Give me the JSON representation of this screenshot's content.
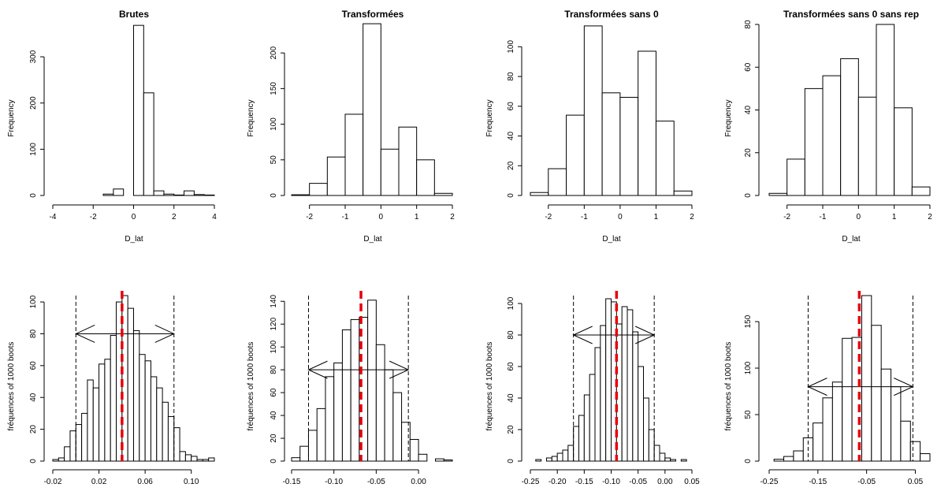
{
  "chart_data": [
    {
      "type": "bar",
      "title": "Brutes",
      "xlabel": "D_lat",
      "ylabel": "Frequency",
      "xlim": [
        -4,
        4
      ],
      "ylim": [
        0,
        370
      ],
      "xticks": [
        -4,
        -2,
        0,
        2,
        4
      ],
      "xtick_labels": [
        "-4",
        "-2",
        "0",
        "2",
        "4"
      ],
      "yticks": [
        0,
        100,
        200,
        300
      ],
      "ytick_labels": [
        "0",
        "100",
        "200",
        "300"
      ],
      "bin_edges": [
        -4,
        -3.5,
        -3,
        -2.5,
        -2,
        -1.5,
        -1,
        -0.5,
        0,
        0.5,
        1,
        1.5,
        2,
        2.5,
        3,
        3.5
      ],
      "values": [
        0,
        0,
        0,
        0,
        0,
        3,
        14,
        0,
        368,
        222,
        10,
        3,
        1,
        10,
        2,
        1
      ]
    },
    {
      "type": "bar",
      "title": "Transformées",
      "xlabel": "D_lat",
      "ylabel": "Frequency",
      "xlim": [
        -2.5,
        2
      ],
      "ylim": [
        0,
        240
      ],
      "xticks": [
        -2,
        -1,
        0,
        1,
        2
      ],
      "xtick_labels": [
        "-2",
        "-1",
        "0",
        "1",
        "2"
      ],
      "yticks": [
        0,
        50,
        100,
        150,
        200
      ],
      "ytick_labels": [
        "0",
        "50",
        "100",
        "150",
        "200"
      ],
      "bin_edges": [
        -2.5,
        -2,
        -1.5,
        -1,
        -0.5,
        0,
        0.5,
        1,
        1.5
      ],
      "values": [
        1,
        17,
        54,
        114,
        241,
        65,
        96,
        50,
        3
      ]
    },
    {
      "type": "bar",
      "title": "Transformées sans 0",
      "xlabel": "D_lat",
      "ylabel": "Frequency",
      "xlim": [
        -2.5,
        2
      ],
      "ylim": [
        0,
        115
      ],
      "xticks": [
        -2,
        -1,
        0,
        1,
        2
      ],
      "xtick_labels": [
        "-2",
        "-1",
        "0",
        "1",
        "2"
      ],
      "yticks": [
        0,
        20,
        40,
        60,
        80,
        100
      ],
      "ytick_labels": [
        "0",
        "20",
        "40",
        "60",
        "80",
        "100"
      ],
      "bin_edges": [
        -2.5,
        -2,
        -1.5,
        -1,
        -0.5,
        0,
        0.5,
        1,
        1.5
      ],
      "values": [
        2,
        18,
        54,
        114,
        69,
        66,
        97,
        50,
        3
      ]
    },
    {
      "type": "bar",
      "title": "Transformées sans 0 sans rep",
      "xlabel": "D_lat",
      "ylabel": "Frequency",
      "xlim": [
        -2.5,
        2
      ],
      "ylim": [
        0,
        80
      ],
      "xticks": [
        -2,
        -1,
        0,
        1,
        2
      ],
      "xtick_labels": [
        "-2",
        "-1",
        "0",
        "1",
        "2"
      ],
      "yticks": [
        0,
        20,
        40,
        60,
        80
      ],
      "ytick_labels": [
        "0",
        "20",
        "40",
        "60",
        "80"
      ],
      "bin_edges": [
        -2.5,
        -2,
        -1.5,
        -1,
        -0.5,
        0,
        0.5,
        1,
        1.5
      ],
      "values": [
        1,
        17,
        50,
        56,
        64,
        46,
        80,
        41,
        4
      ]
    },
    {
      "type": "bar",
      "title": "",
      "xlabel": "",
      "ylabel": "fréquences of 1000 boots",
      "xlim": [
        -0.02,
        0.12
      ],
      "ylim": [
        0,
        104
      ],
      "xticks": [
        -0.02,
        0.02,
        0.06,
        0.1
      ],
      "xtick_labels": [
        "-0.02",
        "0.02",
        "0.06",
        "0.10"
      ],
      "yticks": [
        0,
        20,
        40,
        60,
        80,
        100
      ],
      "ytick_labels": [
        "0",
        "20",
        "40",
        "60",
        "80",
        "100"
      ],
      "bin_edges": [
        -0.02,
        -0.015,
        -0.01,
        -0.005,
        0,
        0.005,
        0.01,
        0.015,
        0.02,
        0.025,
        0.03,
        0.035,
        0.04,
        0.045,
        0.05,
        0.055,
        0.06,
        0.065,
        0.07,
        0.075,
        0.08,
        0.085,
        0.09,
        0.095,
        0.1,
        0.105,
        0.11,
        0.115
      ],
      "values": [
        1,
        2,
        9,
        19,
        23,
        30,
        51,
        46,
        61,
        64,
        79,
        100,
        104,
        96,
        82,
        67,
        63,
        53,
        46,
        37,
        28,
        21,
        6,
        4,
        3,
        1,
        1,
        2
      ],
      "ci_lines": [
        0,
        0.085
      ],
      "mean_line": 0.04,
      "arrow": {
        "y": 80,
        "from": 0,
        "to": 0.085
      }
    },
    {
      "type": "bar",
      "title": "",
      "xlabel": "",
      "ylabel": "fréquences of 1000 boots",
      "xlim": [
        -0.15,
        0.04
      ],
      "ylim": [
        0,
        145
      ],
      "xticks": [
        -0.15,
        -0.1,
        -0.05,
        0
      ],
      "xtick_labels": [
        "-0.15",
        "-0.10",
        "-0.05",
        "0.00"
      ],
      "yticks": [
        0,
        20,
        40,
        60,
        80,
        100,
        120,
        140
      ],
      "ytick_labels": [
        "0",
        "20",
        "40",
        "60",
        "80",
        "100",
        "120",
        "140"
      ],
      "bin_edges": [
        -0.15,
        -0.14,
        -0.13,
        -0.12,
        -0.11,
        -0.1,
        -0.09,
        -0.08,
        -0.07,
        -0.06,
        -0.05,
        -0.04,
        -0.03,
        -0.02,
        -0.01,
        0,
        0.01,
        0.02,
        0.03
      ],
      "values": [
        3,
        13,
        27,
        46,
        74,
        86,
        115,
        124,
        126,
        141,
        102,
        80,
        60,
        34,
        19,
        6,
        0,
        2,
        1
      ],
      "ci_lines": [
        -0.13,
        -0.012
      ],
      "mean_line": -0.068,
      "arrow": {
        "y": 80,
        "from": -0.13,
        "to": -0.012
      }
    },
    {
      "type": "bar",
      "title": "",
      "xlabel": "",
      "ylabel": "fréquences of 1000 boots",
      "xlim": [
        -0.25,
        0.05
      ],
      "ylim": [
        0,
        105
      ],
      "xticks": [
        -0.25,
        -0.2,
        -0.15,
        -0.1,
        -0.05,
        0,
        0.05
      ],
      "xtick_labels": [
        "-0.25",
        "-0.20",
        "-0.15",
        "-0.10",
        "-0.05",
        "0.00",
        "0.05"
      ],
      "yticks": [
        0,
        20,
        40,
        60,
        80,
        100
      ],
      "ytick_labels": [
        "0",
        "20",
        "40",
        "60",
        "80",
        "100"
      ],
      "bin_edges": [
        -0.24,
        -0.23,
        -0.22,
        -0.21,
        -0.2,
        -0.19,
        -0.18,
        -0.17,
        -0.16,
        -0.15,
        -0.14,
        -0.13,
        -0.12,
        -0.11,
        -0.1,
        -0.09,
        -0.08,
        -0.07,
        -0.06,
        -0.05,
        -0.04,
        -0.03,
        -0.02,
        -0.01,
        0,
        0.01,
        0.02,
        0.03
      ],
      "values": [
        1,
        0,
        2,
        3,
        5,
        7,
        10,
        22,
        29,
        42,
        55,
        72,
        86,
        103,
        101,
        87,
        98,
        96,
        82,
        60,
        40,
        20,
        10,
        5,
        2,
        1,
        0,
        1
      ],
      "ci_lines": [
        -0.17,
        -0.02
      ],
      "mean_line": -0.09,
      "arrow": {
        "y": 80,
        "from": -0.17,
        "to": -0.02
      }
    },
    {
      "type": "bar",
      "title": "",
      "xlabel": "",
      "ylabel": "fréquences of 1000 boots",
      "xlim": [
        -0.25,
        0.08
      ],
      "ylim": [
        0,
        178
      ],
      "xticks": [
        -0.25,
        -0.15,
        -0.05,
        0.05
      ],
      "xtick_labels": [
        "-0.25",
        "-0.15",
        "-0.05",
        "0.05"
      ],
      "yticks": [
        0,
        50,
        100,
        150
      ],
      "ytick_labels": [
        "0",
        "50",
        "100",
        "150"
      ],
      "bin_edges": [
        -0.24,
        -0.22,
        -0.2,
        -0.18,
        -0.16,
        -0.14,
        -0.12,
        -0.1,
        -0.08,
        -0.06,
        -0.04,
        -0.02,
        0,
        0.02,
        0.04,
        0.06
      ],
      "values": [
        2,
        5,
        11,
        25,
        41,
        68,
        85,
        132,
        133,
        178,
        146,
        99,
        80,
        43,
        21,
        8
      ],
      "ci_lines": [
        -0.17,
        0.045
      ],
      "mean_line": -0.065,
      "arrow": {
        "y": 80,
        "from": -0.17,
        "to": 0.045
      }
    }
  ]
}
